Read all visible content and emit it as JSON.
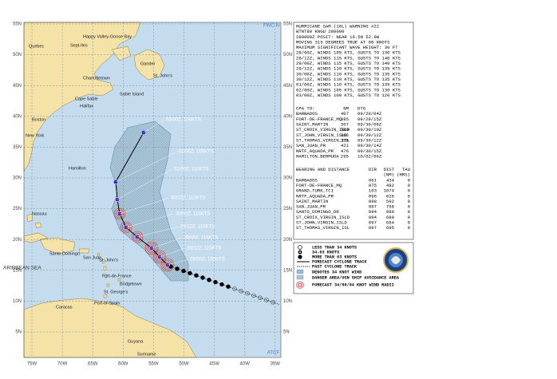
{
  "map": {
    "corner_top": "FWC-N",
    "corner_bottom": "ATCF",
    "lat_labels": [
      "55N",
      "50N",
      "45N",
      "40N",
      "35N",
      "30N",
      "25N",
      "20N",
      "15N",
      "10N",
      "5N"
    ],
    "lon_labels": [
      "75W",
      "70W",
      "65W",
      "60W",
      "55W",
      "50W",
      "45W",
      "40W",
      "35W"
    ],
    "places": [
      "Quebec",
      "Sept-Iles",
      "Happy Valley-Goose Bay",
      "Gander",
      "St. John's",
      "Charlottetown",
      "Halifax",
      "Cape Sable",
      "Sable Island",
      "Boston",
      "New York",
      "Hamilton",
      "Nassau",
      "Santo Domingo",
      "San Juan",
      "St. John's",
      "Fort-de-France",
      "Bridgetown",
      "St. George's",
      "Port-of-Spain",
      "ARIBBEAN SEA",
      "Caracas",
      "Guyana",
      "Suriname"
    ],
    "track_labels": [
      "03/00Z, 100KTS",
      "02/00Z, 105KTS",
      "01/00Z, 110KTS",
      "30/12Z, 110KTS",
      "30/00Z, 110KTS",
      "29/12Z, 110KTS",
      "29/00Z, 115KTS",
      "28/12Z, 115KTS",
      "28/00Z, 105KTS"
    ]
  },
  "warning": {
    "header": [
      "HURRICANE SAM (18L) WARNING #22",
      "WTNT80 KNGU 280000",
      "280000Z POSIT: NEAR 16.5N 52.9W",
      "MOVING 315 DEGREES TRUE AT 08 KNOTS",
      "MAXIMUM SIGNIFICANT WAVE HEIGHT: 30 FT"
    ],
    "forecasts": [
      "28/00Z, WINDS 105 KTS, GUSTS TO 130 KTS",
      "28/12Z, WINDS 115 KTS, GUSTS TO 140 KTS",
      "29/00Z, WINDS 115 KTS, GUSTS TO 140 KTS",
      "29/12Z, WINDS 110 KTS, GUSTS TO 135 KTS",
      "30/00Z, WINDS 110 KTS, GUSTS TO 135 KTS",
      "30/12Z, WINDS 110 KTS, GUSTS TO 135 KTS",
      "01/00Z, WINDS 110 KTS, GUSTS TO 135 KTS",
      "02/00Z, WINDS 105 KTS, GUSTS TO 130 KTS",
      "03/00Z, WINDS 100 KTS, GUSTS TO 120 KTS"
    ]
  },
  "cpa": {
    "header": [
      "CPA TO:",
      "NM",
      "DTG"
    ],
    "rows": [
      [
        "BARBADOS",
        "407",
        "09/29/04Z"
      ],
      [
        "FORT-DE-FRANCE_MQ",
        "385",
        "09/29/15Z"
      ],
      [
        "SAINT_MARTIN",
        "307",
        "09/30/08Z"
      ],
      [
        "ST_CROIX_VIRGIN_ISLD",
        "389",
        "09/30/10Z"
      ],
      [
        "ST_JOHN_VIRGIN_ISLD",
        "366",
        "09/30/12Z"
      ],
      [
        "ST_THOMAS_VIRGIN_ISL",
        "375",
        "09/30/12Z"
      ],
      [
        "SAN_JUAN_PR",
        "421",
        "09/30/14Z"
      ],
      [
        "NRTF_AQUADA_PR",
        "476",
        "09/30/15Z"
      ],
      [
        "HAMILTON_BERMUDA",
        "295",
        "10/02/06Z"
      ]
    ]
  },
  "bearing": {
    "header": [
      "BEARING AND DISTANCE",
      "DIR",
      "DIST",
      "TAU"
    ],
    "units": [
      "(NM)",
      "(HRS)"
    ],
    "rows": [
      [
        "BARBADOS",
        "061",
        "434",
        "0"
      ],
      [
        "FORT-DE-FRANCE_MQ",
        "075",
        "482",
        "0"
      ],
      [
        "GRAND_TURK_TCI",
        "103",
        "1074",
        "0"
      ],
      [
        "NRTF_AQUADA_PR",
        "096",
        "826",
        "0"
      ],
      [
        "SAINT_MARTIN",
        "098",
        "592",
        "0"
      ],
      [
        "SAN_JUAN_PR",
        "087",
        "758",
        "0"
      ],
      [
        "SANTO_DOMINGO_DR",
        "094",
        "980",
        "0"
      ],
      [
        "ST_CROIX_VIRGIN_ISLD",
        "094",
        "680",
        "0"
      ],
      [
        "ST_JOHN_VIRGIN_ISLD",
        "097",
        "684",
        "0"
      ],
      [
        "ST_THOMAS_VIRGIN_ISL",
        "097",
        "695",
        "0"
      ]
    ]
  },
  "legend": {
    "items": [
      "LESS THAN 34 KNOTS",
      "34-63 KNOTS",
      "MORE THAN 63 KNOTS",
      "FORECAST CYCLONE TRACK",
      "PAST CYCLONE TRACK",
      "DENOTES 34 KNOT WIND",
      "DANGER AREA/USN SHIP AVOIDANCE AREA",
      "FORECAST 34/50/64 KNOT WIND RADII"
    ]
  }
}
